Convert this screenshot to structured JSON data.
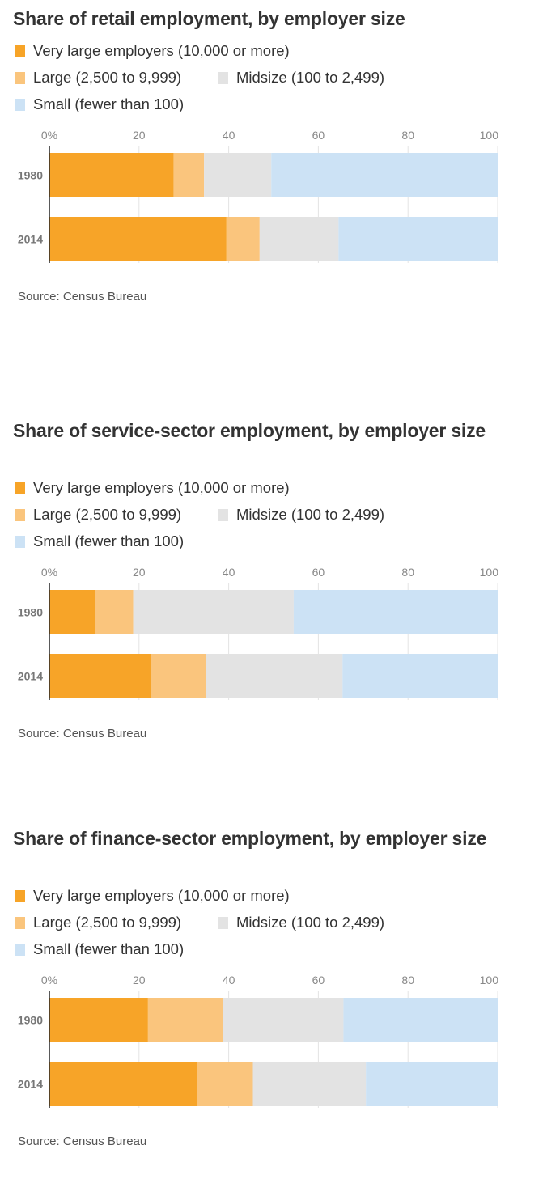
{
  "colors": {
    "very_large": "#F7A428",
    "large": "#FAC57D",
    "midsize": "#E3E3E3",
    "small": "#CCE2F5",
    "gridline": "#E4E4E4",
    "axis": "#222222",
    "tick_label": "#888888",
    "category_label": "#777777"
  },
  "chart_data": [
    {
      "type": "bar",
      "orientation": "horizontal",
      "stacked": true,
      "title": "Share of retail employment, by employer size",
      "categories": [
        "1980",
        "2014"
      ],
      "series": [
        {
          "name": "Very large employers (10,000 or more)",
          "key": "very_large",
          "values": [
            27.7,
            39.5
          ]
        },
        {
          "name": "Large (2,500 to 9,999)",
          "key": "large",
          "values": [
            6.8,
            7.4
          ]
        },
        {
          "name": "Midsize (100 to 2,499)",
          "key": "midsize",
          "values": [
            15.0,
            17.6
          ]
        },
        {
          "name": "Small (fewer than 100)",
          "key": "small",
          "values": [
            50.5,
            35.5
          ]
        }
      ],
      "xlim": [
        0,
        100
      ],
      "xticks": [
        0,
        20,
        40,
        60,
        80,
        100
      ],
      "xtick_labels": [
        "0%",
        "20",
        "40",
        "60",
        "80",
        "100"
      ],
      "legend": "top",
      "source": "Source: Census Bureau"
    },
    {
      "type": "bar",
      "orientation": "horizontal",
      "stacked": true,
      "title": "Share of service-sector employment, by employer size",
      "categories": [
        "1980",
        "2014"
      ],
      "series": [
        {
          "name": "Very large employers (10,000 or more)",
          "key": "very_large",
          "values": [
            10.2,
            22.8
          ]
        },
        {
          "name": "Large (2,500 to 9,999)",
          "key": "large",
          "values": [
            8.5,
            12.2
          ]
        },
        {
          "name": "Midsize (100 to 2,499)",
          "key": "midsize",
          "values": [
            35.8,
            30.4
          ]
        },
        {
          "name": "Small (fewer than 100)",
          "key": "small",
          "values": [
            45.5,
            34.6
          ]
        }
      ],
      "xlim": [
        0,
        100
      ],
      "xticks": [
        0,
        20,
        40,
        60,
        80,
        100
      ],
      "xtick_labels": [
        "0%",
        "20",
        "40",
        "60",
        "80",
        "100"
      ],
      "legend": "top",
      "source": "Source: Census Bureau"
    },
    {
      "type": "bar",
      "orientation": "horizontal",
      "stacked": true,
      "title": "Share of finance-sector employment, by employer size",
      "categories": [
        "1980",
        "2014"
      ],
      "series": [
        {
          "name": "Very large employers (10,000 or more)",
          "key": "very_large",
          "values": [
            22.0,
            33.0
          ]
        },
        {
          "name": "Large (2,500 to 9,999)",
          "key": "large",
          "values": [
            16.8,
            12.4
          ]
        },
        {
          "name": "Midsize (100 to 2,499)",
          "key": "midsize",
          "values": [
            26.8,
            25.2
          ]
        },
        {
          "name": "Small (fewer than 100)",
          "key": "small",
          "values": [
            34.4,
            29.4
          ]
        }
      ],
      "xlim": [
        0,
        100
      ],
      "xticks": [
        0,
        20,
        40,
        60,
        80,
        100
      ],
      "xtick_labels": [
        "0%",
        "20",
        "40",
        "60",
        "80",
        "100"
      ],
      "legend": "top",
      "source": "Source: Census Bureau"
    }
  ]
}
